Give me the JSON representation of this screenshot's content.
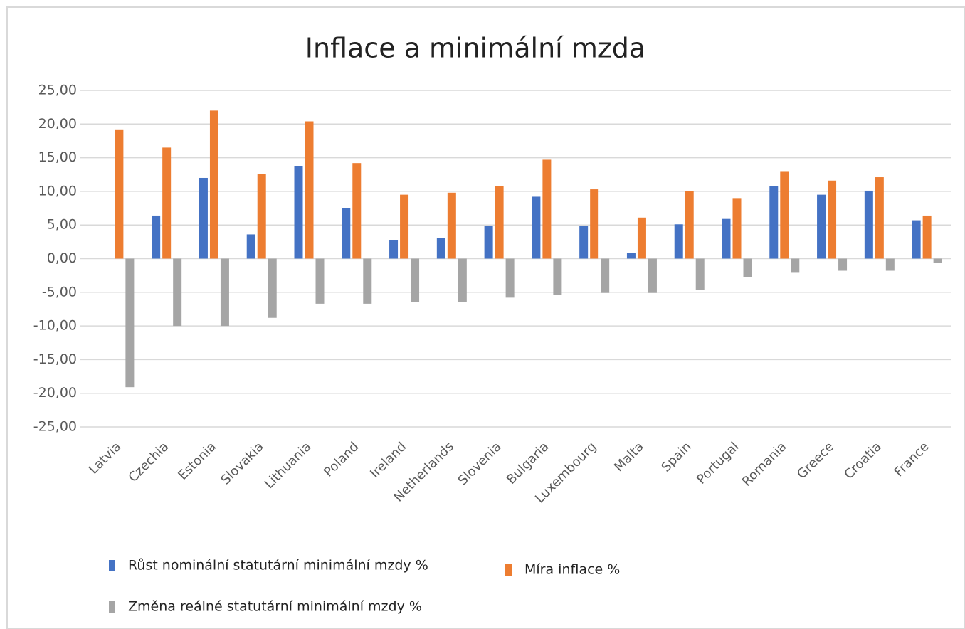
{
  "chart_data": {
    "type": "bar",
    "title": "Inflace a minimální mzda",
    "categories": [
      "Latvia",
      "Czechia",
      "Estonia",
      "Slovakia",
      "Lithuania",
      "Poland",
      "Ireland",
      "Netherlands",
      "Slovenia",
      "Bulgaria",
      "Luxembourg",
      "Malta",
      "Spain",
      "Portugal",
      "Romania",
      "Greece",
      "Croatia",
      "France"
    ],
    "series": [
      {
        "name": "Růst nominální statutární minimální mzdy %",
        "color": "#4472c4",
        "values": [
          0,
          6.4,
          12.0,
          3.6,
          13.7,
          7.5,
          2.8,
          3.1,
          4.9,
          9.2,
          4.9,
          0.8,
          5.1,
          5.9,
          10.8,
          9.5,
          10.1,
          5.7
        ]
      },
      {
        "name": "Míra inflace %",
        "color": "#ed7d31",
        "values": [
          19.1,
          16.5,
          22.0,
          12.6,
          20.4,
          14.2,
          9.5,
          9.8,
          10.8,
          14.7,
          10.3,
          6.1,
          10.0,
          9.0,
          12.9,
          11.6,
          12.1,
          6.4
        ]
      },
      {
        "name": "Změna reálné statutární minimální mzdy %",
        "color": "#a5a5a5",
        "values": [
          -19.1,
          -10.0,
          -10.0,
          -8.8,
          -6.7,
          -6.7,
          -6.5,
          -6.5,
          -5.8,
          -5.4,
          -5.1,
          -5.1,
          -4.6,
          -2.7,
          -2.0,
          -1.8,
          -1.8,
          -0.6
        ]
      }
    ],
    "ylim": [
      -25,
      25
    ],
    "yticks": [
      {
        "value": -25,
        "label": "-25,00"
      },
      {
        "value": -20,
        "label": "-20,00"
      },
      {
        "value": -15,
        "label": "-15,00"
      },
      {
        "value": -10,
        "label": "-10,00"
      },
      {
        "value": -5,
        "label": "-5,00"
      },
      {
        "value": 0,
        "label": "0,00"
      },
      {
        "value": 5,
        "label": "5,00"
      },
      {
        "value": 10,
        "label": "10,00"
      },
      {
        "value": 15,
        "label": "15,00"
      },
      {
        "value": 20,
        "label": "20,00"
      },
      {
        "value": 25,
        "label": "25,00"
      }
    ],
    "grid": true
  }
}
